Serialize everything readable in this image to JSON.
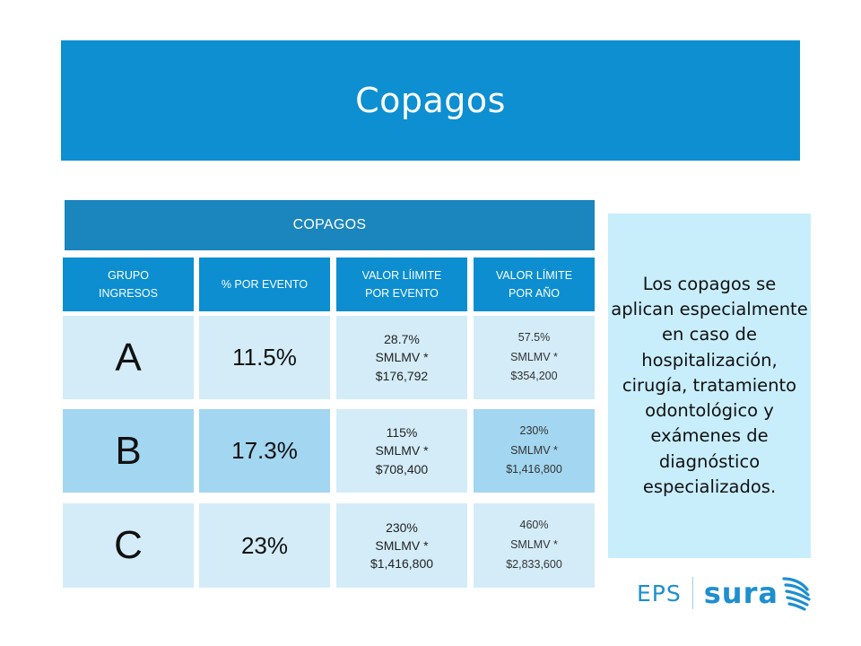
{
  "title": "Copagos",
  "table": {
    "header": "COPAGOS",
    "columns": [
      "GRUPO\nINGRESOS",
      "% POR EVENTO",
      "VALOR LÍIMITE\nPOR EVENTO",
      "VALOR LÍMITE\nPOR AÑO"
    ],
    "rows": [
      {
        "group": "A",
        "percent": "11.5%",
        "limit_event": "28.7%\nSMLMV *\n$176,792",
        "limit_year": "57.5%\nSMLMV *\n$354,200"
      },
      {
        "group": "B",
        "percent": "17.3%",
        "limit_event": "115%\nSMLMV *\n$708,400",
        "limit_year": "230%\nSMLMV *\n$1,416,800"
      },
      {
        "group": "C",
        "percent": "23%",
        "limit_event": "230%\nSMLMV *\n$1,416,800",
        "limit_year": "460%\nSMLMV *\n$2,833,600"
      }
    ]
  },
  "side_note": "Los copagos se aplican especialmente en caso de hospitalización, cirugía, tratamiento odontológico y exámenes de diagnóstico especializados.",
  "logo": {
    "eps": "EPS",
    "brand": "sura",
    "icon": "sura-wings-icon"
  },
  "colors": {
    "banner": "#0d8fd1",
    "table_header": "#1b85bd",
    "column_header": "#0c8ed0",
    "cell_light": "#d3ecf8",
    "cell_mid": "#a3d6f0",
    "side_box": "#c8eefc",
    "brand": "#1d8fcf"
  }
}
